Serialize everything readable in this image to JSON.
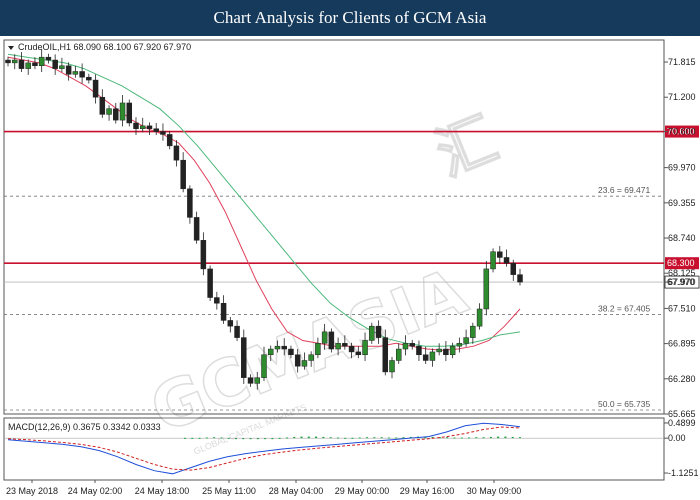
{
  "banner": {
    "title": "Chart Analysis for Clients of GCM Asia"
  },
  "watermark": {
    "brand": "GCMASIA",
    "chinese": "汇",
    "tagline": "GLOBAL CAPITAL MARKETS"
  },
  "colors": {
    "bull": "#2e8b2e",
    "bear": "#222222",
    "ma_fast": "#e0405a",
    "ma_slow": "#4cb87a",
    "resistance": "#c8102e",
    "macd_line": "#1f4fd8",
    "signal_line": "#d0211f",
    "hist": "#1a9f3a"
  },
  "chart_data": [
    {
      "type": "candlestick",
      "symbol_label": "CrudeOIL,H1  68.090 68.100 67.920 67.970",
      "timeframe": "H1",
      "ylim": [
        65.665,
        72.2
      ],
      "y_ticks": [
        "71.815",
        "71.200",
        "70.600",
        "69.970",
        "69.355",
        "68.740",
        "68.125",
        "67.970",
        "67.510",
        "66.895",
        "66.280",
        "65.665"
      ],
      "x_ticks": [
        "23 May 2018",
        "24 May 02:00",
        "24 May 18:00",
        "25 May 11:00",
        "28 May 04:00",
        "29 May 00:00",
        "29 May 16:00",
        "30 May 09:00"
      ],
      "closes": [
        71.8,
        71.85,
        71.7,
        71.8,
        71.75,
        71.9,
        71.85,
        71.7,
        71.75,
        71.6,
        71.65,
        71.55,
        71.5,
        71.2,
        70.9,
        71.0,
        70.8,
        71.1,
        70.75,
        70.65,
        70.7,
        70.65,
        70.6,
        70.55,
        70.35,
        70.1,
        69.6,
        69.1,
        68.7,
        68.2,
        67.7,
        67.6,
        67.3,
        67.2,
        67.0,
        66.3,
        66.2,
        66.3,
        66.7,
        66.8,
        66.85,
        66.8,
        66.7,
        66.5,
        66.6,
        66.7,
        66.9,
        67.1,
        66.8,
        66.9,
        66.85,
        66.75,
        66.7,
        66.95,
        67.2,
        67.0,
        66.4,
        66.6,
        66.8,
        66.9,
        66.85,
        66.7,
        66.6,
        66.75,
        66.8,
        66.7,
        66.85,
        66.9,
        67.0,
        67.2,
        67.5,
        68.2,
        68.5,
        68.4,
        68.3,
        68.1,
        67.97
      ],
      "horizontal_lines": [
        {
          "name": "resistance-70600",
          "value": 70.6,
          "label": "70.600",
          "style": "solid"
        },
        {
          "name": "resistance-68300",
          "value": 68.3,
          "label": "68.300",
          "style": "solid"
        },
        {
          "name": "fib-23.6",
          "value": 69.471,
          "label": "23.6 = 69.471",
          "style": "dashed"
        },
        {
          "name": "fib-38.2",
          "value": 67.405,
          "label": "38.2 = 67.405",
          "style": "dashed"
        },
        {
          "name": "fib-50.0",
          "value": 65.735,
          "label": "50.0 = 65.735",
          "style": "dashed"
        },
        {
          "name": "current-price",
          "value": 67.97,
          "label": "67.970",
          "style": "thin"
        }
      ],
      "moving_averages": [
        {
          "name": "ma-fast",
          "values": [
            71.9,
            71.85,
            71.8,
            71.7,
            71.55,
            71.4,
            71.2,
            71.0,
            70.8,
            70.65,
            70.55,
            70.4,
            70.1,
            69.7,
            69.2,
            68.6,
            68.0,
            67.5,
            67.1,
            66.95,
            66.9,
            66.85,
            66.85,
            66.85,
            66.85,
            66.9,
            66.85,
            66.8,
            66.78,
            66.8,
            66.85,
            66.95,
            67.2,
            67.5
          ]
        },
        {
          "name": "ma-slow",
          "values": [
            71.95,
            71.9,
            71.85,
            71.8,
            71.7,
            71.55,
            71.4,
            71.2,
            71.0,
            70.7,
            70.35,
            69.95,
            69.55,
            69.15,
            68.75,
            68.35,
            67.95,
            67.6,
            67.35,
            67.15,
            66.98,
            66.9,
            66.85,
            66.85,
            66.88,
            66.95,
            67.05,
            67.1
          ]
        }
      ]
    },
    {
      "type": "macd",
      "label": "MACD(12,26,9) 0.3675 0.3342 0.0333",
      "ylim": [
        -1.35,
        0.65
      ],
      "y_ticks": [
        "0.4899",
        "0.00",
        "-1.1251"
      ],
      "histogram": [
        0.01,
        0.01,
        0.01,
        0.02,
        0.03,
        0.02,
        0.01,
        0.0,
        -0.01,
        -0.02,
        -0.02,
        -0.01,
        0.0,
        0.01,
        0.02,
        0.04,
        0.05,
        0.05,
        0.05,
        0.04,
        0.03,
        0.02,
        0.01,
        0.01,
        0.02,
        0.03,
        0.03,
        0.03,
        0.02,
        0.02,
        0.03,
        0.04,
        0.05,
        0.05,
        0.04,
        0.03,
        0.03,
        0.02,
        0.02,
        0.02,
        0.03,
        0.03,
        0.04,
        0.05,
        0.05,
        0.04,
        0.03
      ],
      "macd_line": [
        -0.05,
        -0.1,
        -0.15,
        -0.2,
        -0.28,
        -0.4,
        -0.6,
        -0.85,
        -1.05,
        -1.15,
        -0.95,
        -0.75,
        -0.6,
        -0.5,
        -0.42,
        -0.35,
        -0.3,
        -0.25,
        -0.2,
        -0.15,
        -0.1,
        -0.05,
        0.0,
        0.05,
        0.2,
        0.4,
        0.48,
        0.44,
        0.37
      ],
      "signal_line": [
        -0.02,
        -0.05,
        -0.09,
        -0.14,
        -0.2,
        -0.3,
        -0.45,
        -0.65,
        -0.85,
        -1.0,
        -1.03,
        -0.95,
        -0.8,
        -0.65,
        -0.53,
        -0.45,
        -0.38,
        -0.32,
        -0.27,
        -0.22,
        -0.17,
        -0.12,
        -0.07,
        -0.02,
        0.05,
        0.15,
        0.28,
        0.36,
        0.33
      ]
    }
  ]
}
